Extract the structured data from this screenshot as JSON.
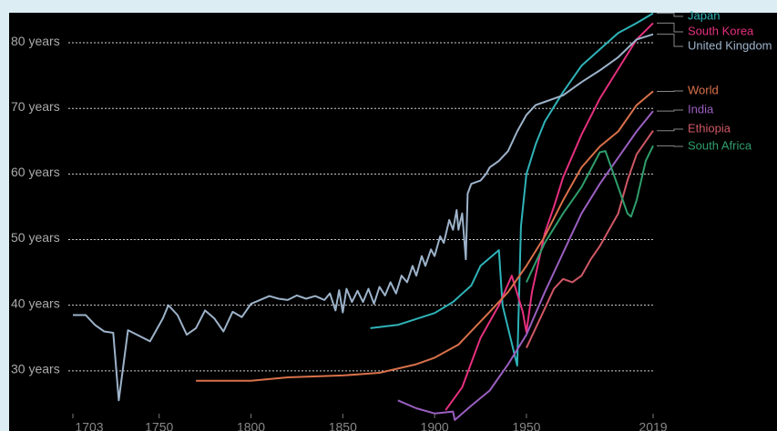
{
  "chart_data": {
    "type": "line",
    "xlim": [
      1703,
      2019
    ],
    "xticks": [
      1703,
      1750,
      1800,
      1850,
      1900,
      1950,
      2019
    ],
    "ylim": [
      20.83,
      84.58
    ],
    "yticks": [
      {
        "value": 30,
        "label": "30 years"
      },
      {
        "value": 40,
        "label": "40 years"
      },
      {
        "value": 50,
        "label": "50 years"
      },
      {
        "value": 60,
        "label": "60 years"
      },
      {
        "value": 70,
        "label": "70 years"
      },
      {
        "value": 80,
        "label": "80 years"
      }
    ],
    "grid": true,
    "series": [
      {
        "name": "Japan",
        "color": "#2fb3b8",
        "x": [
          1865,
          1880,
          1900,
          1910,
          1920,
          1925,
          1935,
          1937,
          1945,
          1947,
          1950,
          1955,
          1960,
          1970,
          1980,
          1990,
          2000,
          2010,
          2019
        ],
        "values": [
          36.5,
          37,
          38.8,
          40.5,
          43,
          46,
          48.4,
          40,
          30.8,
          52,
          60,
          64.5,
          68,
          72.5,
          76.5,
          79,
          81.5,
          83,
          84.5
        ]
      },
      {
        "name": "South Korea",
        "color": "#e6307e",
        "x": [
          1906,
          1915,
          1925,
          1935,
          1942,
          1948,
          1950,
          1953,
          1960,
          1965,
          1970,
          1980,
          1990,
          2000,
          2010,
          2019
        ],
        "values": [
          24,
          27.5,
          35,
          40,
          44.5,
          39,
          35.9,
          42,
          51,
          55,
          59.5,
          66,
          71.5,
          76,
          80.5,
          83
        ]
      },
      {
        "name": "United Kingdom",
        "color": "#9db3ca",
        "x": [
          1703,
          1710,
          1715,
          1720,
          1725,
          1728,
          1733,
          1745,
          1752,
          1755,
          1760,
          1765,
          1770,
          1775,
          1780,
          1785,
          1790,
          1795,
          1800,
          1810,
          1815,
          1820,
          1825,
          1830,
          1835,
          1840,
          1843,
          1846,
          1848,
          1850,
          1852,
          1855,
          1858,
          1861,
          1864,
          1867,
          1870,
          1873,
          1876,
          1879,
          1882,
          1885,
          1888,
          1890,
          1893,
          1895,
          1898,
          1900,
          1903,
          1905,
          1908,
          1910,
          1912,
          1913,
          1915,
          1917,
          1918,
          1920,
          1925,
          1928,
          1930,
          1935,
          1940,
          1945,
          1950,
          1955,
          1960,
          1965,
          1970,
          1980,
          1990,
          2000,
          2010,
          2019
        ],
        "values": [
          38.5,
          38.5,
          37,
          36,
          35.8,
          25.5,
          36.2,
          34.5,
          38,
          40,
          38.5,
          35.5,
          36.5,
          39.2,
          38,
          36,
          39,
          38.2,
          40.2,
          41.4,
          41,
          40.8,
          41.5,
          41,
          41.4,
          40.8,
          41.8,
          39.2,
          42.3,
          38.9,
          42.5,
          40.5,
          42.2,
          40.5,
          42.5,
          40.2,
          42.8,
          41.5,
          43.5,
          41.8,
          44.5,
          43.5,
          46,
          44.5,
          47.5,
          46,
          48.5,
          47.5,
          50.5,
          49.5,
          53,
          51.5,
          54.5,
          51.5,
          54,
          47,
          57,
          58.5,
          59,
          60,
          61,
          62,
          63.5,
          66.5,
          69,
          70.5,
          71,
          71.5,
          72,
          74,
          75.8,
          77.8,
          80.5,
          81.3
        ]
      },
      {
        "name": "World",
        "color": "#d9714a",
        "x": [
          1770,
          1800,
          1820,
          1850,
          1870,
          1890,
          1900,
          1913,
          1930,
          1940,
          1950,
          1960,
          1970,
          1980,
          1990,
          2000,
          2010,
          2019
        ],
        "values": [
          28.5,
          28.5,
          29,
          29.3,
          29.7,
          31,
          32,
          34,
          39,
          42,
          46,
          50.5,
          56,
          61,
          64.2,
          66.5,
          70.5,
          72.6
        ]
      },
      {
        "name": "India",
        "color": "#9a5fc0",
        "x": [
          1880,
          1890,
          1900,
          1910,
          1911,
          1920,
          1930,
          1940,
          1950,
          1960,
          1970,
          1980,
          1990,
          2000,
          2010,
          2019
        ],
        "values": [
          25.5,
          24.3,
          23.5,
          23.8,
          22.5,
          24.7,
          27,
          31,
          35.5,
          42,
          48,
          54,
          58.5,
          62.5,
          66.5,
          69.6
        ]
      },
      {
        "name": "Ethiopia",
        "color": "#cf5866",
        "x": [
          1950,
          1955,
          1960,
          1965,
          1970,
          1975,
          1980,
          1985,
          1990,
          1995,
          2000,
          2005,
          2010,
          2019
        ],
        "values": [
          33.5,
          36.5,
          39.5,
          42.5,
          44,
          43.5,
          44.5,
          47,
          49,
          51.5,
          54,
          59,
          63,
          66.6
        ]
      },
      {
        "name": "South Africa",
        "color": "#2f9e6c",
        "x": [
          1950,
          1960,
          1970,
          1980,
          1990,
          1993,
          2000,
          2005,
          2007,
          2010,
          2015,
          2019
        ],
        "values": [
          43.5,
          49.5,
          54,
          58,
          63.3,
          63.5,
          58,
          54,
          53.5,
          56,
          62,
          64.3
        ]
      }
    ]
  }
}
